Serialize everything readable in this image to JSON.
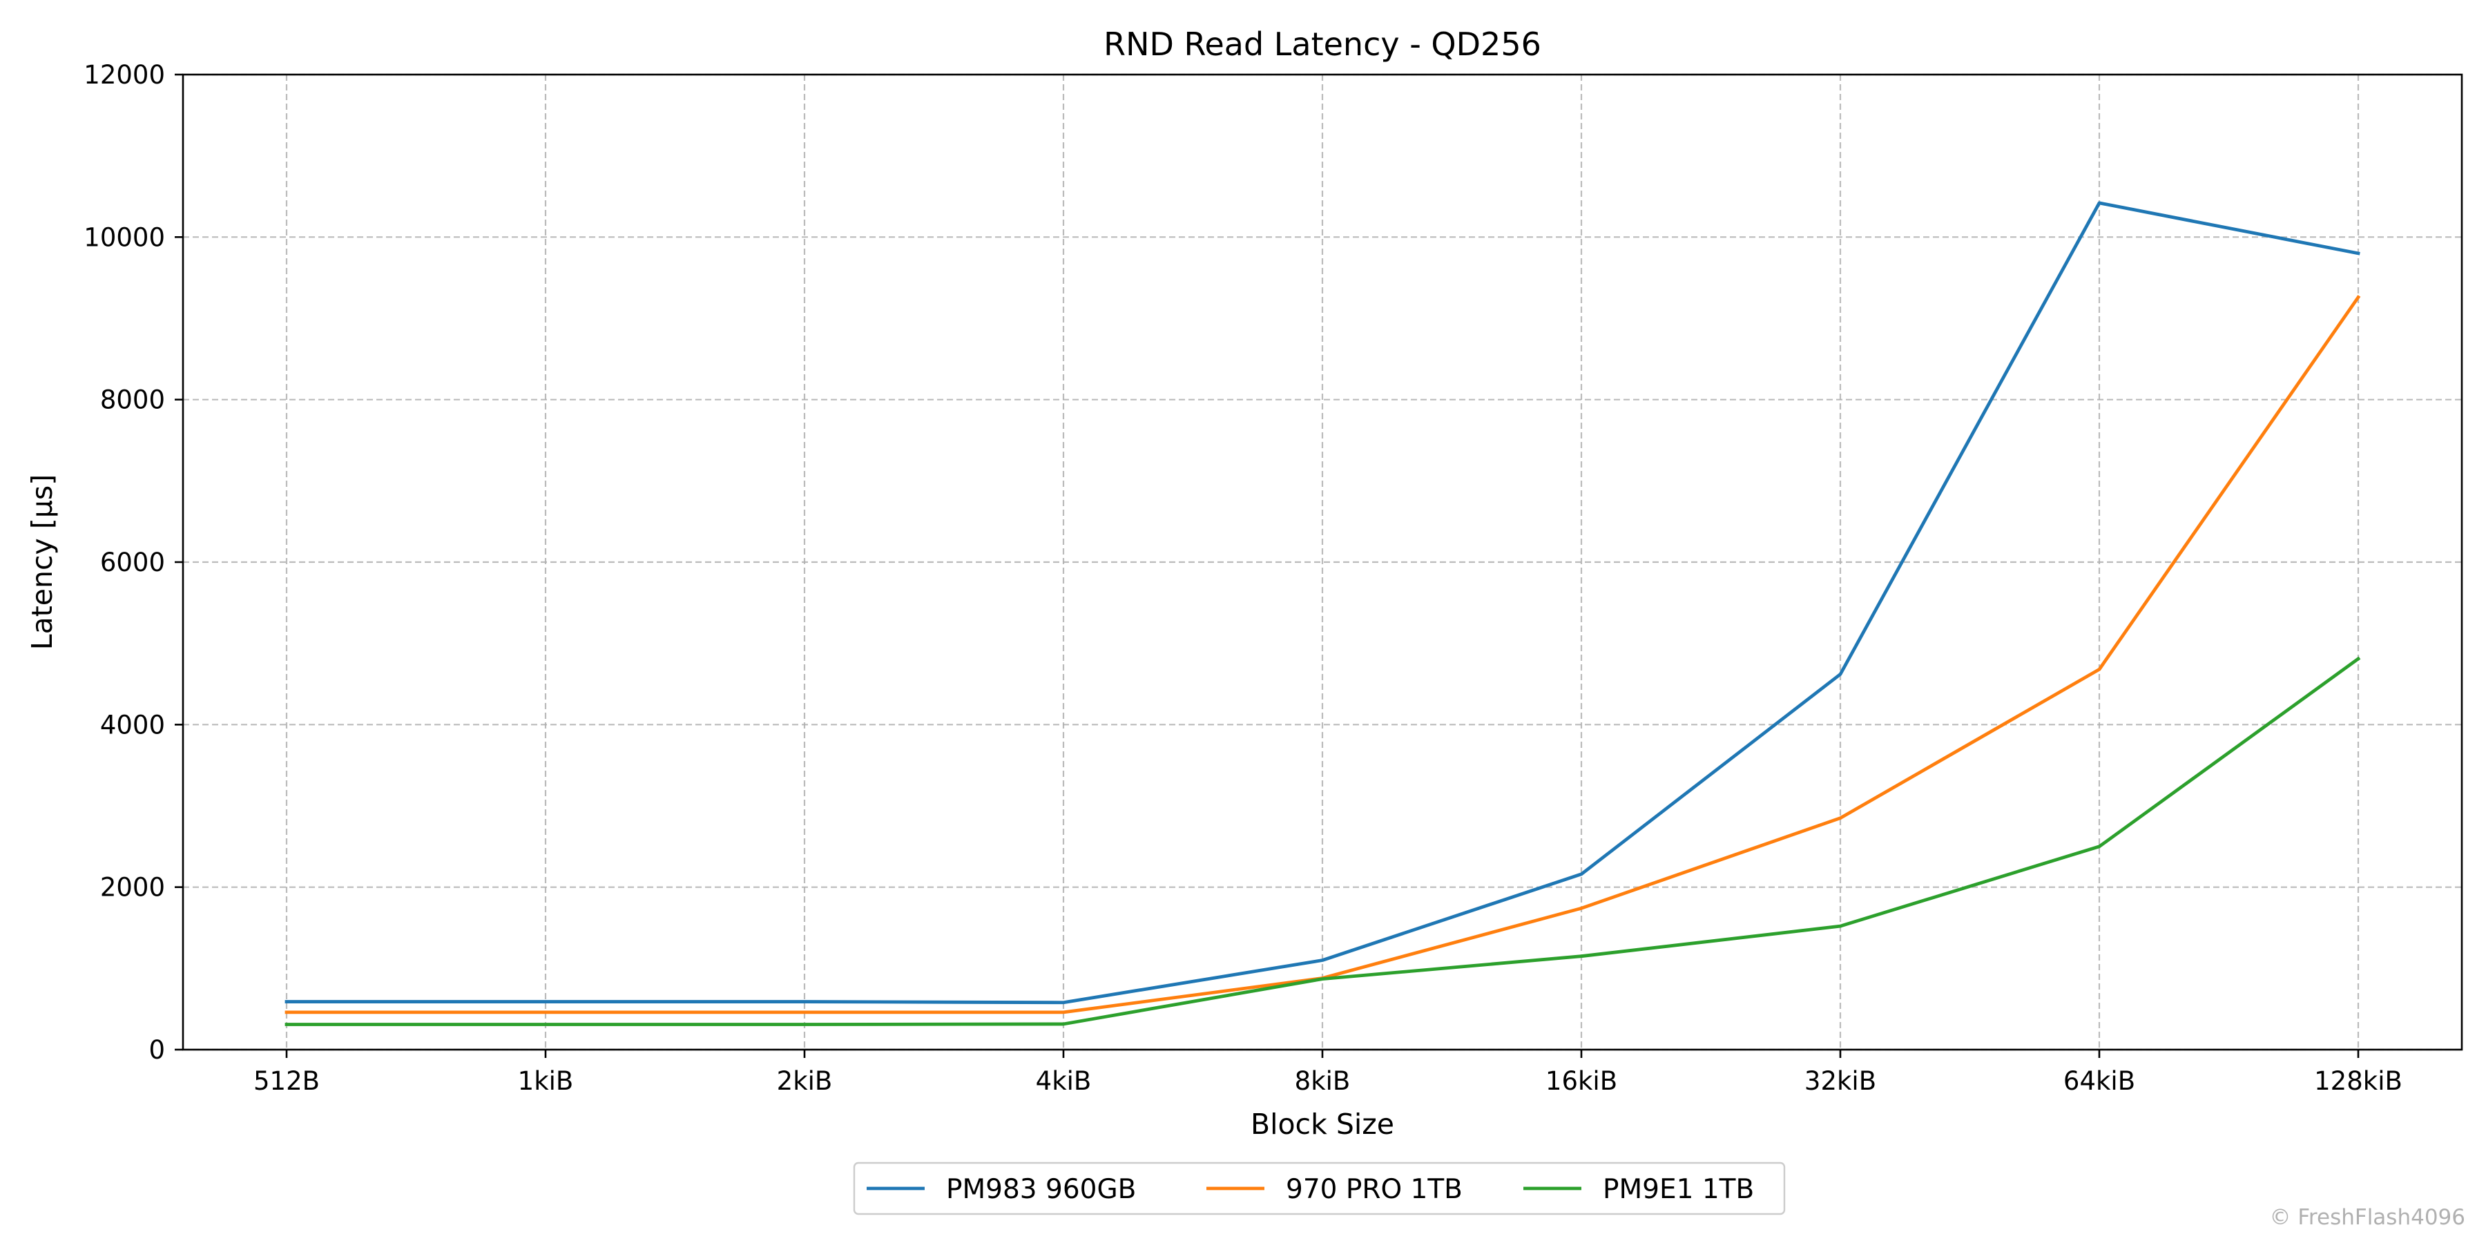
{
  "chart_data": {
    "type": "line",
    "title": "RND Read Latency - QD256",
    "xlabel": "Block Size",
    "ylabel": "Latency [µs]",
    "categories": [
      "512B",
      "1kiB",
      "2kiB",
      "4kiB",
      "8kiB",
      "16kiB",
      "32kiB",
      "64kiB",
      "128kiB"
    ],
    "ylim": [
      0,
      12000
    ],
    "yticks": [
      0,
      2000,
      4000,
      6000,
      8000,
      10000,
      12000
    ],
    "grid": true,
    "legend_position": "bottom-center",
    "series": [
      {
        "name": "PM983 960GB",
        "color": "#1f77b4",
        "values": [
          590,
          590,
          590,
          580,
          1100,
          2160,
          4620,
          10420,
          9800
        ]
      },
      {
        "name": "970 PRO 1TB",
        "color": "#ff7f0e",
        "values": [
          460,
          460,
          460,
          460,
          880,
          1740,
          2850,
          4680,
          9260
        ]
      },
      {
        "name": "PM9E1 1TB",
        "color": "#2ca02c",
        "values": [
          310,
          310,
          310,
          315,
          870,
          1150,
          1520,
          2500,
          4810
        ]
      }
    ]
  },
  "watermark": "© FreshFlash4096"
}
